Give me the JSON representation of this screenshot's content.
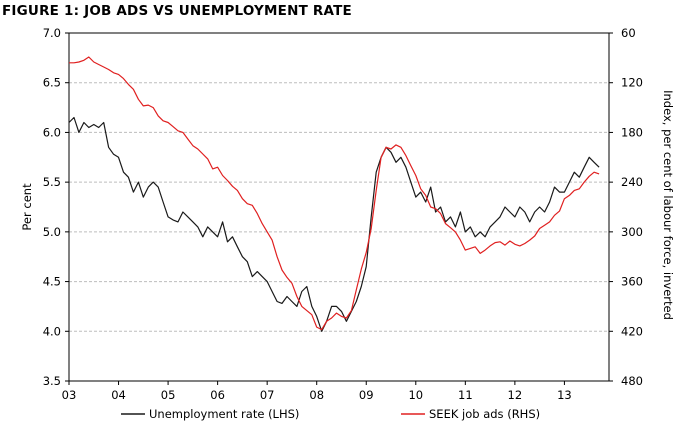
{
  "chart_data": {
    "type": "line",
    "title": "FIGURE 1: JOB ADS VS UNEMPLOYMENT RATE",
    "xlabel": "",
    "ylabel_left": "Per cent",
    "ylabel_right": "Index, per cent of labour force, inverted",
    "x_ticks": [
      "03",
      "04",
      "05",
      "06",
      "07",
      "08",
      "09",
      "10",
      "11",
      "12",
      "13"
    ],
    "y_left": {
      "min": 3.5,
      "max": 7.0,
      "ticks": [
        "3.5",
        "4.0",
        "4.5",
        "5.0",
        "5.5",
        "6.0",
        "6.5",
        "7.0"
      ]
    },
    "y_right": {
      "min": 60,
      "max": 480,
      "inverted": true,
      "ticks": [
        "480",
        "420",
        "360",
        "300",
        "240",
        "180",
        "120",
        "60"
      ]
    },
    "grid": true,
    "legend_position": "bottom",
    "series": [
      {
        "name": "Unemployment rate (LHS)",
        "axis": "left",
        "color": "#1a1a1a",
        "x": [
          2003.0,
          2003.1,
          2003.2,
          2003.3,
          2003.4,
          2003.5,
          2003.6,
          2003.7,
          2003.8,
          2003.9,
          2004.0,
          2004.1,
          2004.2,
          2004.3,
          2004.4,
          2004.5,
          2004.6,
          2004.7,
          2004.8,
          2004.9,
          2005.0,
          2005.1,
          2005.2,
          2005.3,
          2005.4,
          2005.5,
          2005.6,
          2005.7,
          2005.8,
          2005.9,
          2006.0,
          2006.1,
          2006.2,
          2006.3,
          2006.4,
          2006.5,
          2006.6,
          2006.7,
          2006.8,
          2006.9,
          2007.0,
          2007.1,
          2007.2,
          2007.3,
          2007.4,
          2007.5,
          2007.6,
          2007.7,
          2007.8,
          2007.9,
          2008.0,
          2008.1,
          2008.2,
          2008.3,
          2008.4,
          2008.5,
          2008.6,
          2008.7,
          2008.8,
          2008.9,
          2009.0,
          2009.1,
          2009.2,
          2009.3,
          2009.4,
          2009.5,
          2009.6,
          2009.7,
          2009.8,
          2009.9,
          2010.0,
          2010.1,
          2010.2,
          2010.3,
          2010.4,
          2010.5,
          2010.6,
          2010.7,
          2010.8,
          2010.9,
          2011.0,
          2011.1,
          2011.2,
          2011.3,
          2011.4,
          2011.5,
          2011.6,
          2011.7,
          2011.8,
          2011.9,
          2012.0,
          2012.1,
          2012.2,
          2012.3,
          2012.4,
          2012.5,
          2012.6,
          2012.7,
          2012.8,
          2012.9,
          2013.0,
          2013.1,
          2013.2,
          2013.3,
          2013.4,
          2013.5,
          2013.6,
          2013.7
        ],
        "values": [
          6.1,
          6.15,
          6.0,
          6.1,
          6.05,
          6.08,
          6.05,
          6.1,
          5.85,
          5.78,
          5.75,
          5.6,
          5.55,
          5.4,
          5.5,
          5.35,
          5.45,
          5.5,
          5.45,
          5.3,
          5.15,
          5.12,
          5.1,
          5.2,
          5.15,
          5.1,
          5.05,
          4.95,
          5.05,
          5.0,
          4.95,
          5.1,
          4.9,
          4.95,
          4.85,
          4.75,
          4.7,
          4.55,
          4.6,
          4.55,
          4.5,
          4.4,
          4.3,
          4.28,
          4.35,
          4.3,
          4.25,
          4.4,
          4.45,
          4.25,
          4.15,
          4.0,
          4.1,
          4.25,
          4.25,
          4.2,
          4.1,
          4.2,
          4.3,
          4.45,
          4.65,
          5.15,
          5.6,
          5.75,
          5.85,
          5.8,
          5.7,
          5.75,
          5.65,
          5.5,
          5.35,
          5.4,
          5.3,
          5.45,
          5.2,
          5.25,
          5.1,
          5.15,
          5.05,
          5.2,
          5.0,
          5.05,
          4.95,
          5.0,
          4.95,
          5.05,
          5.1,
          5.15,
          5.25,
          5.2,
          5.15,
          5.25,
          5.2,
          5.1,
          5.2,
          5.25,
          5.2,
          5.3,
          5.45,
          5.4,
          5.4,
          5.5,
          5.6,
          5.55,
          5.65,
          5.75,
          5.7,
          5.65
        ]
      },
      {
        "name": "SEEK job ads (RHS)",
        "axis": "right",
        "color": "#e02020",
        "x": [
          2003.0,
          2003.1,
          2003.2,
          2003.3,
          2003.4,
          2003.5,
          2003.6,
          2003.7,
          2003.8,
          2003.9,
          2004.0,
          2004.1,
          2004.2,
          2004.3,
          2004.4,
          2004.5,
          2004.6,
          2004.7,
          2004.8,
          2004.9,
          2005.0,
          2005.1,
          2005.2,
          2005.3,
          2005.4,
          2005.5,
          2005.6,
          2005.7,
          2005.8,
          2005.9,
          2006.0,
          2006.1,
          2006.2,
          2006.3,
          2006.4,
          2006.5,
          2006.6,
          2006.7,
          2006.8,
          2006.9,
          2007.0,
          2007.1,
          2007.2,
          2007.3,
          2007.4,
          2007.5,
          2007.6,
          2007.7,
          2007.8,
          2007.9,
          2008.0,
          2008.1,
          2008.2,
          2008.3,
          2008.4,
          2008.5,
          2008.6,
          2008.7,
          2008.8,
          2008.9,
          2009.0,
          2009.1,
          2009.2,
          2009.3,
          2009.4,
          2009.5,
          2009.6,
          2009.7,
          2009.8,
          2009.9,
          2010.0,
          2010.1,
          2010.2,
          2010.3,
          2010.4,
          2010.5,
          2010.6,
          2010.7,
          2010.8,
          2010.9,
          2011.0,
          2011.1,
          2011.2,
          2011.3,
          2011.4,
          2011.5,
          2011.6,
          2011.7,
          2011.8,
          2011.9,
          2012.0,
          2012.1,
          2012.2,
          2012.3,
          2012.4,
          2012.5,
          2012.6,
          2012.7,
          2012.8,
          2012.9,
          2013.0,
          2013.1,
          2013.2,
          2013.3,
          2013.4,
          2013.5,
          2013.6,
          2013.7
        ],
        "values": [
          96,
          96,
          95,
          93,
          89,
          95,
          98,
          101,
          104,
          108,
          110,
          115,
          122,
          128,
          140,
          148,
          147,
          150,
          160,
          166,
          168,
          173,
          178,
          180,
          188,
          196,
          200,
          206,
          212,
          224,
          222,
          232,
          238,
          245,
          250,
          260,
          266,
          268,
          278,
          290,
          300,
          310,
          330,
          346,
          355,
          362,
          378,
          390,
          395,
          400,
          415,
          418,
          408,
          404,
          398,
          402,
          404,
          395,
          370,
          345,
          325,
          296,
          250,
          210,
          198,
          200,
          195,
          198,
          208,
          220,
          232,
          248,
          256,
          270,
          272,
          278,
          290,
          295,
          300,
          310,
          322,
          320,
          318,
          326,
          322,
          317,
          313,
          312,
          316,
          311,
          315,
          317,
          314,
          310,
          305,
          296,
          292,
          288,
          280,
          275,
          260,
          256,
          250,
          248,
          240,
          233,
          228,
          230
        ]
      }
    ]
  }
}
